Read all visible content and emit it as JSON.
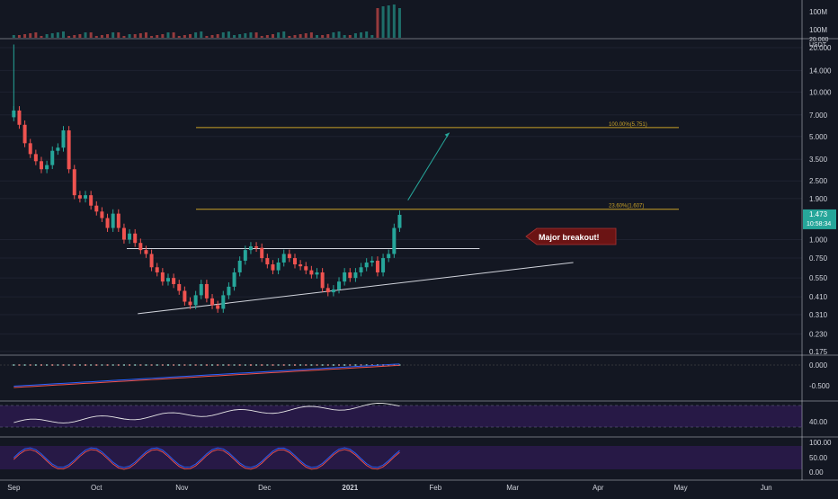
{
  "chart_data": {
    "type": "candlestick",
    "symbol_quote": "USDT",
    "price_scale": "log",
    "y_ticks": [
      {
        "label": "20.000",
        "value": 20
      },
      {
        "label": "14.000",
        "value": 14
      },
      {
        "label": "10.000",
        "value": 10
      },
      {
        "label": "7.000",
        "value": 7
      },
      {
        "label": "5.000",
        "value": 5
      },
      {
        "label": "3.500",
        "value": 3.5
      },
      {
        "label": "2.500",
        "value": 2.5
      },
      {
        "label": "1.900",
        "value": 1.9
      },
      {
        "label": "1.000",
        "value": 1.0
      },
      {
        "label": "0.750",
        "value": 0.75
      },
      {
        "label": "0.550",
        "value": 0.55
      },
      {
        "label": "0.410",
        "value": 0.41
      },
      {
        "label": "0.310",
        "value": 0.31
      },
      {
        "label": "0.230",
        "value": 0.23
      },
      {
        "label": "0.175",
        "value": 0.175
      }
    ],
    "top_axis_label": "20.000",
    "volume_axis_label": "100M",
    "current_price": "1.473",
    "countdown": "10:58:34",
    "x_labels": [
      "Sep",
      "Oct",
      "Nov",
      "Dec",
      "2021",
      "Feb",
      "Mar",
      "Apr",
      "May",
      "Jun"
    ],
    "x_range": [
      "2020-08-27",
      "2021-06-14"
    ],
    "ylim": [
      0.165,
      23
    ],
    "candles": [
      {
        "d": "2020-09-01",
        "c": 7.5
      },
      {
        "d": "2020-09-03",
        "c": 6.0
      },
      {
        "d": "2020-09-05",
        "c": 4.5
      },
      {
        "d": "2020-09-07",
        "c": 3.8
      },
      {
        "d": "2020-09-09",
        "c": 3.4
      },
      {
        "d": "2020-09-11",
        "c": 3.0
      },
      {
        "d": "2020-09-13",
        "c": 3.2
      },
      {
        "d": "2020-09-15",
        "c": 4.0
      },
      {
        "d": "2020-09-17",
        "c": 4.2
      },
      {
        "d": "2020-09-19",
        "c": 5.5
      },
      {
        "d": "2020-09-21",
        "c": 3.0
      },
      {
        "d": "2020-09-23",
        "c": 2.0
      },
      {
        "d": "2020-09-25",
        "c": 1.9
      },
      {
        "d": "2020-09-27",
        "c": 2.0
      },
      {
        "d": "2020-09-29",
        "c": 1.7
      },
      {
        "d": "2020-10-01",
        "c": 1.55
      },
      {
        "d": "2020-10-03",
        "c": 1.4
      },
      {
        "d": "2020-10-05",
        "c": 1.2
      },
      {
        "d": "2020-10-07",
        "c": 1.5
      },
      {
        "d": "2020-10-09",
        "c": 1.2
      },
      {
        "d": "2020-10-11",
        "c": 1.0
      },
      {
        "d": "2020-10-13",
        "c": 1.1
      },
      {
        "d": "2020-10-15",
        "c": 0.95
      },
      {
        "d": "2020-10-17",
        "c": 0.85
      },
      {
        "d": "2020-10-19",
        "c": 0.8
      },
      {
        "d": "2020-10-21",
        "c": 0.65
      },
      {
        "d": "2020-10-23",
        "c": 0.6
      },
      {
        "d": "2020-10-25",
        "c": 0.52
      },
      {
        "d": "2020-10-27",
        "c": 0.55
      },
      {
        "d": "2020-10-29",
        "c": 0.5
      },
      {
        "d": "2020-10-31",
        "c": 0.45
      },
      {
        "d": "2020-11-02",
        "c": 0.38
      },
      {
        "d": "2020-11-04",
        "c": 0.36
      },
      {
        "d": "2020-11-06",
        "c": 0.42
      },
      {
        "d": "2020-11-08",
        "c": 0.5
      },
      {
        "d": "2020-11-10",
        "c": 0.4
      },
      {
        "d": "2020-11-12",
        "c": 0.36
      },
      {
        "d": "2020-11-14",
        "c": 0.34
      },
      {
        "d": "2020-11-16",
        "c": 0.42
      },
      {
        "d": "2020-11-18",
        "c": 0.48
      },
      {
        "d": "2020-11-20",
        "c": 0.6
      },
      {
        "d": "2020-11-22",
        "c": 0.72
      },
      {
        "d": "2020-11-24",
        "c": 0.85
      },
      {
        "d": "2020-11-26",
        "c": 0.9
      },
      {
        "d": "2020-11-28",
        "c": 0.88
      },
      {
        "d": "2020-11-30",
        "c": 0.75
      },
      {
        "d": "2020-12-02",
        "c": 0.68
      },
      {
        "d": "2020-12-04",
        "c": 0.62
      },
      {
        "d": "2020-12-06",
        "c": 0.7
      },
      {
        "d": "2020-12-08",
        "c": 0.8
      },
      {
        "d": "2020-12-10",
        "c": 0.75
      },
      {
        "d": "2020-12-12",
        "c": 0.68
      },
      {
        "d": "2020-12-14",
        "c": 0.66
      },
      {
        "d": "2020-12-16",
        "c": 0.62
      },
      {
        "d": "2020-12-18",
        "c": 0.58
      },
      {
        "d": "2020-12-20",
        "c": 0.6
      },
      {
        "d": "2020-12-22",
        "c": 0.47
      },
      {
        "d": "2020-12-24",
        "c": 0.44
      },
      {
        "d": "2020-12-26",
        "c": 0.46
      },
      {
        "d": "2020-12-28",
        "c": 0.52
      },
      {
        "d": "2020-12-30",
        "c": 0.6
      },
      {
        "d": "2021-01-01",
        "c": 0.55
      },
      {
        "d": "2021-01-03",
        "c": 0.6
      },
      {
        "d": "2021-01-05",
        "c": 0.65
      },
      {
        "d": "2021-01-07",
        "c": 0.7
      },
      {
        "d": "2021-01-09",
        "c": 0.72
      },
      {
        "d": "2021-01-11",
        "c": 0.6
      },
      {
        "d": "2021-01-13",
        "c": 0.75
      },
      {
        "d": "2021-01-15",
        "c": 0.8
      },
      {
        "d": "2021-01-17",
        "c": 1.2
      },
      {
        "d": "2021-01-19",
        "c": 1.473
      }
    ],
    "fib_levels": [
      {
        "label": "100.00%(5.751)",
        "value": 5.751
      },
      {
        "label": "23.60%(1.607)",
        "value": 1.607
      }
    ],
    "resistance_line": {
      "value": 0.87,
      "from": "2020-10-12",
      "to": "2021-02-17"
    },
    "trendline": [
      {
        "d": "2020-10-16",
        "v": 0.315
      },
      {
        "d": "2021-03-23",
        "v": 0.7
      }
    ],
    "projection": [
      {
        "d": "2021-01-22",
        "v": 1.85
      },
      {
        "d": "2021-02-06",
        "v": 5.3
      }
    ],
    "annotation": "Major breakout!",
    "macd_axis_labels": [
      "0.000",
      "-0.500"
    ],
    "rsi_axis_labels": [
      "40.00"
    ],
    "stoch_axis_labels": [
      "100.00",
      "50.00",
      "0.00"
    ],
    "colors": {
      "up": "#26a69a",
      "down": "#ef5350",
      "fib": "#c9a227",
      "callout": "#6b1414",
      "projection": "#26a69a",
      "rsi_band": "#2a1a4a"
    }
  }
}
